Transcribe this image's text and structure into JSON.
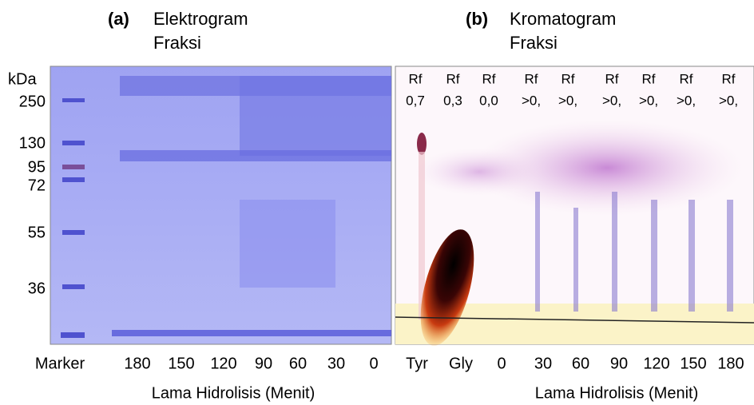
{
  "panel_a": {
    "tag": "(a)",
    "title_lines": [
      "Elektrogram",
      "Fraksi"
    ],
    "unit": "kDa",
    "markers": [
      "250",
      "130",
      "95",
      "72",
      "55",
      "36"
    ],
    "lanes": [
      "Marker",
      "180",
      "150",
      "120",
      "90",
      "60",
      "30",
      "0"
    ],
    "axis_title": "Lama Hidrolisis (Menit)"
  },
  "panel_b": {
    "tag": "(b)",
    "title_lines": [
      "Kromatogram",
      "Fraksi"
    ],
    "rf_labels": [
      [
        "Rf",
        "0,7"
      ],
      [
        "Rf",
        "0,3"
      ],
      [
        "Rf",
        "0,0"
      ],
      [
        "Rf",
        ">0,"
      ],
      [
        "Rf",
        ">0,"
      ],
      [
        "Rf",
        ">0,"
      ],
      [
        "Rf",
        ">0,"
      ],
      [
        "Rf",
        ">0,"
      ],
      [
        "Rf",
        ">0,"
      ]
    ],
    "lanes": [
      "Tyr",
      "Gly",
      "0",
      "30",
      "60",
      "90",
      "120",
      "150",
      "180"
    ],
    "axis_title": "Lama Hidrolisis (Menit)"
  }
}
